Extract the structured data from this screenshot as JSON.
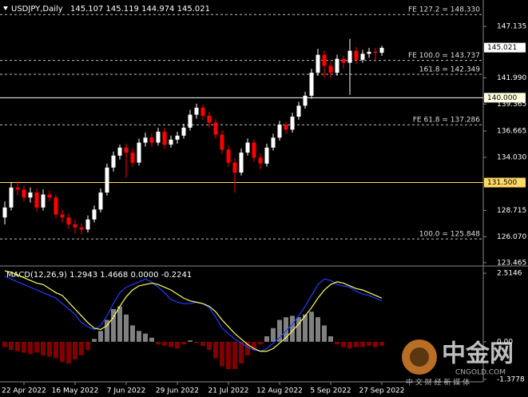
{
  "chart_data": {
    "type": "candlestick",
    "header": {
      "symbol": "USDJPY,Daily",
      "quote": "145.107 145.119 144.974 145.021"
    },
    "categories": [
      null,
      null,
      null,
      "22 Apr 2022",
      null,
      null,
      null,
      null,
      null,
      null,
      null,
      "16 May 2022",
      null,
      null,
      null,
      null,
      null,
      null,
      null,
      "7 Jun 2022",
      null,
      null,
      null,
      null,
      null,
      null,
      null,
      "29 Jun 2022",
      null,
      null,
      null,
      null,
      null,
      null,
      null,
      "21 Jul 2022",
      null,
      null,
      null,
      null,
      null,
      null,
      null,
      "12 Aug 2022",
      null,
      null,
      null,
      null,
      null,
      null,
      null,
      "5 Sep 2022",
      null,
      null,
      null,
      null,
      null,
      null,
      null,
      "27 Sep 2022"
    ],
    "ohlc": [
      [
        128.0,
        129.6,
        127.3,
        129.0
      ],
      [
        129.0,
        131.5,
        128.7,
        131.0
      ],
      [
        131.0,
        131.6,
        130.2,
        130.8
      ],
      [
        130.8,
        131.2,
        129.6,
        130.0
      ],
      [
        130.0,
        131.0,
        129.5,
        130.5
      ],
      [
        130.5,
        130.9,
        128.6,
        129.0
      ],
      [
        129.0,
        130.8,
        128.7,
        130.3
      ],
      [
        130.3,
        130.7,
        129.6,
        130.0
      ],
      [
        130.0,
        130.3,
        127.9,
        128.3
      ],
      [
        128.3,
        128.8,
        127.5,
        128.0
      ],
      [
        128.0,
        128.4,
        126.9,
        127.3
      ],
      [
        127.3,
        127.8,
        126.4,
        127.0
      ],
      [
        127.0,
        127.4,
        126.3,
        126.8
      ],
      [
        126.8,
        128.2,
        126.5,
        127.8
      ],
      [
        127.8,
        129.2,
        127.5,
        128.8
      ],
      [
        128.8,
        130.9,
        128.5,
        130.5
      ],
      [
        130.5,
        133.4,
        130.2,
        133.0
      ],
      [
        133.0,
        134.6,
        132.6,
        134.2
      ],
      [
        134.2,
        135.3,
        133.8,
        135.0
      ],
      [
        135.0,
        135.4,
        132.0,
        134.5
      ],
      [
        134.5,
        134.9,
        133.1,
        133.5
      ],
      [
        133.5,
        135.9,
        133.2,
        135.5
      ],
      [
        135.5,
        136.5,
        135.1,
        136.0
      ],
      [
        136.0,
        136.4,
        135.1,
        135.5
      ],
      [
        135.5,
        137.0,
        135.2,
        136.6
      ],
      [
        136.6,
        137.0,
        134.9,
        135.3
      ],
      [
        135.3,
        136.2,
        135.0,
        135.8
      ],
      [
        135.8,
        136.6,
        135.4,
        136.2
      ],
      [
        136.2,
        137.4,
        135.9,
        137.0
      ],
      [
        137.0,
        138.8,
        136.7,
        138.3
      ],
      [
        138.3,
        139.4,
        137.9,
        139.0
      ],
      [
        139.0,
        139.3,
        137.8,
        138.2
      ],
      [
        138.2,
        138.6,
        137.0,
        137.5
      ],
      [
        137.5,
        137.9,
        135.9,
        136.3
      ],
      [
        136.3,
        136.7,
        134.4,
        134.8
      ],
      [
        134.8,
        135.2,
        133.1,
        133.5
      ],
      [
        133.5,
        133.9,
        130.5,
        132.5
      ],
      [
        132.5,
        134.9,
        132.2,
        134.5
      ],
      [
        134.5,
        135.9,
        134.2,
        135.5
      ],
      [
        135.5,
        135.8,
        133.6,
        134.0
      ],
      [
        134.0,
        134.4,
        132.8,
        133.4
      ],
      [
        133.4,
        135.4,
        133.1,
        135.0
      ],
      [
        135.0,
        136.4,
        134.7,
        136.0
      ],
      [
        136.0,
        137.7,
        135.7,
        137.3
      ],
      [
        137.3,
        137.6,
        136.4,
        136.8
      ],
      [
        136.8,
        138.5,
        136.5,
        138.1
      ],
      [
        138.1,
        139.6,
        137.8,
        139.2
      ],
      [
        139.2,
        140.6,
        138.9,
        140.2
      ],
      [
        140.2,
        142.9,
        139.9,
        142.5
      ],
      [
        142.5,
        144.9,
        142.2,
        144.3
      ],
      [
        144.3,
        144.7,
        142.0,
        143.2
      ],
      [
        143.2,
        143.6,
        142.0,
        142.5
      ],
      [
        142.5,
        144.3,
        142.2,
        143.9
      ],
      [
        143.9,
        144.2,
        142.9,
        143.5
      ],
      [
        143.5,
        145.9,
        140.3,
        144.7
      ],
      [
        144.7,
        145.1,
        143.4,
        143.8
      ],
      [
        143.8,
        144.8,
        143.5,
        144.4
      ],
      [
        144.4,
        145.0,
        144.0,
        144.6
      ],
      [
        144.6,
        145.0,
        143.6,
        144.5
      ],
      [
        144.5,
        145.2,
        144.2,
        145.0
      ]
    ],
    "up_color": "#ffffff",
    "down_color": "#ff0000",
    "ylim": [
      123.3,
      149.55
    ],
    "yticks": [
      {
        "value": 147.135,
        "label": "147.135"
      },
      {
        "value": 141.99,
        "label": "141.990"
      },
      {
        "value": 139.365,
        "label": "139.365"
      },
      {
        "value": 136.665,
        "label": "136.665"
      },
      {
        "value": 134.03,
        "label": "134.030"
      },
      {
        "value": 128.715,
        "label": "128.715"
      },
      {
        "value": 126.07,
        "label": "126.070"
      },
      {
        "value": 123.465,
        "label": "123.465"
      }
    ],
    "levels": [
      {
        "value": 148.33,
        "label": "FE 127.2 = 148.330",
        "style": "dashed",
        "color": "#c0c0c0"
      },
      {
        "value": 143.737,
        "label": "FE 100.0 = 143.737",
        "style": "dashed",
        "color": "#c0c0c0"
      },
      {
        "value": 142.349,
        "label": "161.8 = 142.349",
        "style": "dashed",
        "color": "#c0c0c0"
      },
      {
        "value": 140.0,
        "label": "140.000",
        "style": "solid",
        "color": "#ffffff",
        "badge": "#ffffe0"
      },
      {
        "value": 137.286,
        "label": "FE 61.8 = 137.286",
        "style": "dashed",
        "color": "#c0c0c0"
      },
      {
        "value": 131.5,
        "label": "131.500",
        "style": "solid",
        "color": "#ffd966",
        "badge": "#ffd966"
      },
      {
        "value": 125.848,
        "label": "100.0 = 125.848",
        "style": "dashed",
        "color": "#c0c0c0"
      }
    ],
    "current_price": {
      "value": 145.021,
      "label": "145.021"
    },
    "macd": {
      "title": "MACD(12,26,9) 1.2943 1.4668 0.0000 -0.2241",
      "ylim": [
        -1.47,
        2.75
      ],
      "yticks": [
        {
          "value": 2.5146,
          "label": "2.5146"
        },
        {
          "value": 0,
          "label": "0.00"
        },
        {
          "value": -1.3778,
          "label": "-1.3778"
        }
      ],
      "histogram": [
        -0.2,
        -0.3,
        -0.35,
        -0.4,
        -0.45,
        -0.4,
        -0.5,
        -0.55,
        -0.6,
        -0.75,
        -0.8,
        -0.65,
        -0.5,
        -0.3,
        0.1,
        0.4,
        0.8,
        1.2,
        1.3,
        1.0,
        0.6,
        0.4,
        0.3,
        0.15,
        -0.1,
        -0.15,
        -0.2,
        -0.25,
        -0.1,
        0.05,
        -0.05,
        -0.15,
        -0.3,
        -0.6,
        -0.9,
        -1.0,
        -1.0,
        -0.8,
        -0.5,
        -0.3,
        -0.1,
        0.2,
        0.5,
        0.8,
        0.9,
        0.95,
        0.9,
        1.0,
        1.1,
        0.9,
        0.6,
        0.2,
        -0.1,
        -0.2,
        -0.25,
        -0.2,
        -0.2,
        -0.15,
        -0.2,
        -0.15
      ],
      "hist_up_color": "#ffffff",
      "hist_down_color": "#ff0000",
      "series": [
        {
          "name": "MACD",
          "color": "#1e3cff",
          "values": [
            2.4,
            2.3,
            2.2,
            2.1,
            2.0,
            1.9,
            1.8,
            1.7,
            1.6,
            1.4,
            1.2,
            1.0,
            0.7,
            0.55,
            0.45,
            0.6,
            0.95,
            1.4,
            1.8,
            2.0,
            2.1,
            2.2,
            2.3,
            2.2,
            2.0,
            1.8,
            1.55,
            1.45,
            1.4,
            1.4,
            1.45,
            1.4,
            1.25,
            0.9,
            0.5,
            0.3,
            0.1,
            -0.05,
            -0.2,
            -0.3,
            -0.35,
            -0.25,
            -0.05,
            0.15,
            0.4,
            0.65,
            0.95,
            1.3,
            1.7,
            2.1,
            2.3,
            2.25,
            2.1,
            2.05,
            2.0,
            1.85,
            1.75,
            1.7,
            1.6,
            1.5
          ]
        },
        {
          "name": "Signal",
          "color": "#ffff66",
          "values": [
            2.6,
            2.55,
            2.45,
            2.35,
            2.25,
            2.15,
            2.1,
            1.95,
            1.8,
            1.7,
            1.45,
            1.2,
            0.95,
            0.7,
            0.5,
            0.45,
            0.6,
            0.9,
            1.3,
            1.65,
            1.9,
            2.05,
            2.1,
            2.15,
            2.1,
            2.0,
            1.9,
            1.75,
            1.6,
            1.5,
            1.45,
            1.4,
            1.3,
            1.1,
            0.8,
            0.55,
            0.3,
            0.1,
            -0.1,
            -0.25,
            -0.35,
            -0.35,
            -0.25,
            -0.05,
            0.15,
            0.4,
            0.65,
            0.95,
            1.25,
            1.6,
            1.9,
            2.1,
            2.2,
            2.15,
            2.05,
            1.95,
            1.9,
            1.8,
            1.7,
            1.6
          ]
        }
      ]
    },
    "watermark": {
      "brand": "中金网",
      "site": "CNGOLD.COM",
      "slogan": "中 文 财 经 新 媒 体"
    }
  }
}
